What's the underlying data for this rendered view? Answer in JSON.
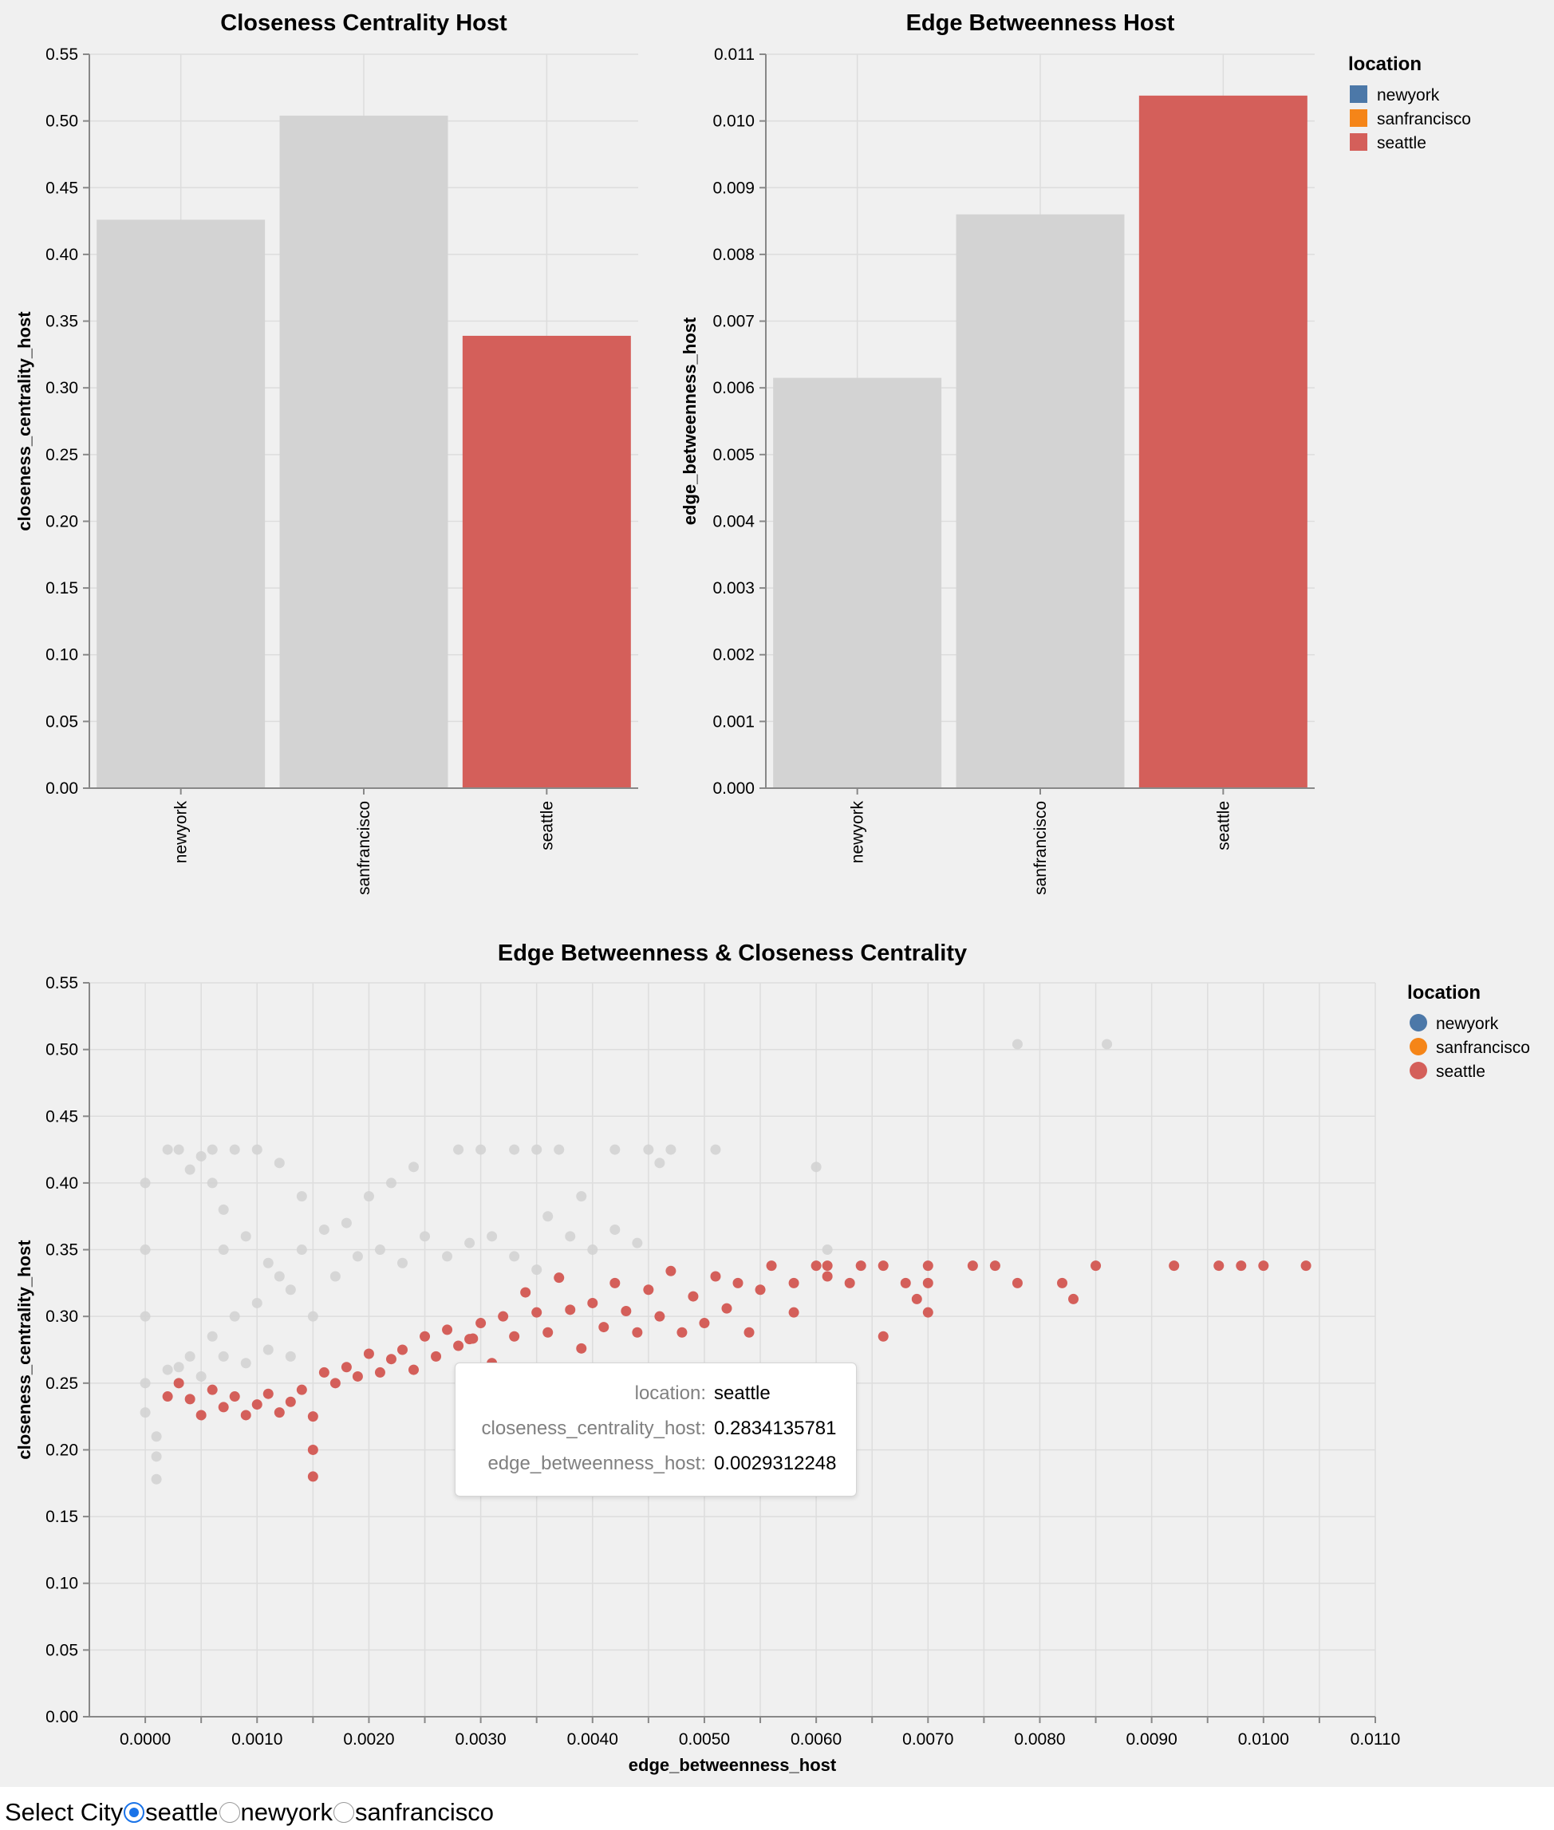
{
  "chart_data": [
    {
      "type": "bar",
      "title": "Closeness Centrality Host",
      "xlabel": "",
      "ylabel": "closeness_centrality_host",
      "categories": [
        "newyork",
        "sanfrancisco",
        "seattle"
      ],
      "values": [
        0.426,
        0.504,
        0.339
      ],
      "ylim": [
        0,
        0.55
      ],
      "yticks": [
        "0.00",
        "0.05",
        "0.10",
        "0.15",
        "0.20",
        "0.25",
        "0.30",
        "0.35",
        "0.40",
        "0.45",
        "0.50",
        "0.55"
      ],
      "highlighted": "seattle",
      "grid": true
    },
    {
      "type": "bar",
      "title": "Edge Betweenness Host",
      "xlabel": "",
      "ylabel": "edge_betweenness_host",
      "categories": [
        "newyork",
        "sanfrancisco",
        "seattle"
      ],
      "values": [
        0.00615,
        0.0086,
        0.01038
      ],
      "ylim": [
        0,
        0.011
      ],
      "yticks": [
        "0.000",
        "0.001",
        "0.002",
        "0.003",
        "0.004",
        "0.005",
        "0.006",
        "0.007",
        "0.008",
        "0.009",
        "0.010",
        "0.011"
      ],
      "highlighted": "seattle",
      "grid": true,
      "legend": {
        "title": "location",
        "entries": [
          "newyork",
          "sanfrancisco",
          "seattle"
        ],
        "placement": "right"
      }
    },
    {
      "type": "scatter",
      "title": "Edge Betweenness & Closeness Centrality",
      "xlabel": "edge_betweenness_host",
      "ylabel": "closeness_centrality_host",
      "xlim": [
        -0.0005,
        0.011
      ],
      "ylim": [
        0,
        0.55
      ],
      "xticks": [
        "0.0000",
        "0.0010",
        "0.0020",
        "0.0030",
        "0.0040",
        "0.0050",
        "0.0060",
        "0.0070",
        "0.0080",
        "0.0090",
        "0.0100",
        "0.0110"
      ],
      "yticks": [
        "0.00",
        "0.05",
        "0.10",
        "0.15",
        "0.20",
        "0.25",
        "0.30",
        "0.35",
        "0.40",
        "0.45",
        "0.50",
        "0.55"
      ],
      "grid": true,
      "legend": {
        "title": "location",
        "entries": [
          "newyork",
          "sanfrancisco",
          "seattle"
        ],
        "placement": "right"
      },
      "highlighted": "seattle",
      "series": [
        {
          "name": "seattle",
          "points": [
            [
              0.0074,
              0.338
            ],
            [
              0.0076,
              0.338
            ],
            [
              0.0078,
              0.325
            ],
            [
              0.0082,
              0.325
            ],
            [
              0.0083,
              0.313
            ],
            [
              0.0085,
              0.338
            ],
            [
              0.0092,
              0.338
            ],
            [
              0.0096,
              0.338
            ],
            [
              0.0098,
              0.338
            ],
            [
              0.01,
              0.338
            ],
            [
              0.01038,
              0.338
            ],
            [
              0.007,
              0.338
            ],
            [
              0.007,
              0.325
            ],
            [
              0.007,
              0.303
            ],
            [
              0.0069,
              0.313
            ],
            [
              0.0068,
              0.325
            ],
            [
              0.0066,
              0.285
            ],
            [
              0.0066,
              0.338
            ],
            [
              0.0064,
              0.338
            ],
            [
              0.0063,
              0.325
            ],
            [
              0.0061,
              0.33
            ],
            [
              0.0061,
              0.338
            ],
            [
              0.006,
              0.338
            ],
            [
              0.0058,
              0.303
            ],
            [
              0.0058,
              0.325
            ],
            [
              0.0056,
              0.338
            ],
            [
              0.0055,
              0.32
            ],
            [
              0.0054,
              0.288
            ],
            [
              0.0053,
              0.325
            ],
            [
              0.0052,
              0.306
            ],
            [
              0.0051,
              0.33
            ],
            [
              0.005,
              0.295
            ],
            [
              0.0049,
              0.315
            ],
            [
              0.0048,
              0.288
            ],
            [
              0.0047,
              0.334
            ],
            [
              0.0046,
              0.3
            ],
            [
              0.0045,
              0.32
            ],
            [
              0.0044,
              0.288
            ],
            [
              0.0043,
              0.304
            ],
            [
              0.0042,
              0.325
            ],
            [
              0.0041,
              0.292
            ],
            [
              0.004,
              0.31
            ],
            [
              0.0039,
              0.276
            ],
            [
              0.0038,
              0.305
            ],
            [
              0.0037,
              0.329
            ],
            [
              0.0036,
              0.288
            ],
            [
              0.0035,
              0.303
            ],
            [
              0.0034,
              0.318
            ],
            [
              0.0033,
              0.285
            ],
            [
              0.0032,
              0.3
            ],
            [
              0.0031,
              0.265
            ],
            [
              0.003,
              0.295
            ],
            [
              0.0029,
              0.283
            ],
            [
              0.0028,
              0.278
            ],
            [
              0.0027,
              0.29
            ],
            [
              0.0026,
              0.27
            ],
            [
              0.0025,
              0.285
            ],
            [
              0.0024,
              0.26
            ],
            [
              0.0023,
              0.275
            ],
            [
              0.0022,
              0.268
            ],
            [
              0.0021,
              0.258
            ],
            [
              0.002,
              0.272
            ],
            [
              0.0019,
              0.255
            ],
            [
              0.0018,
              0.262
            ],
            [
              0.0017,
              0.25
            ],
            [
              0.0016,
              0.258
            ],
            [
              0.0015,
              0.18
            ],
            [
              0.0015,
              0.2
            ],
            [
              0.0015,
              0.225
            ],
            [
              0.0014,
              0.245
            ],
            [
              0.0013,
              0.236
            ],
            [
              0.0012,
              0.228
            ],
            [
              0.0011,
              0.242
            ],
            [
              0.001,
              0.234
            ],
            [
              0.0009,
              0.226
            ],
            [
              0.0008,
              0.24
            ],
            [
              0.0007,
              0.232
            ],
            [
              0.0006,
              0.245
            ],
            [
              0.0005,
              0.226
            ],
            [
              0.0004,
              0.238
            ],
            [
              0.0003,
              0.25
            ],
            [
              0.0002,
              0.24
            ],
            [
              0.00293,
              0.2834
            ]
          ]
        },
        {
          "name": "other",
          "points": [
            [
              0.0078,
              0.504
            ],
            [
              0.0086,
              0.504
            ],
            [
              0.006,
              0.412
            ],
            [
              0.0061,
              0.35
            ],
            [
              0.0051,
              0.425
            ],
            [
              0.0047,
              0.425
            ],
            [
              0.0046,
              0.415
            ],
            [
              0.0045,
              0.425
            ],
            [
              0.0042,
              0.425
            ],
            [
              0.0039,
              0.39
            ],
            [
              0.0037,
              0.425
            ],
            [
              0.0035,
              0.425
            ],
            [
              0.0033,
              0.425
            ],
            [
              0.003,
              0.425
            ],
            [
              0.0028,
              0.425
            ],
            [
              0.0024,
              0.412
            ],
            [
              0.0022,
              0.4
            ],
            [
              0.002,
              0.39
            ],
            [
              0.0018,
              0.37
            ],
            [
              0.0016,
              0.365
            ],
            [
              0.0014,
              0.35
            ],
            [
              0.0012,
              0.33
            ],
            [
              0.001,
              0.31
            ],
            [
              0.0008,
              0.3
            ],
            [
              0.0006,
              0.285
            ],
            [
              0.0004,
              0.27
            ],
            [
              0.0002,
              0.26
            ],
            [
              0.0,
              0.25
            ],
            [
              0.0001,
              0.178
            ],
            [
              0.0001,
              0.195
            ],
            [
              0.0001,
              0.21
            ],
            [
              0.0,
              0.228
            ],
            [
              0.0,
              0.3
            ],
            [
              0.0,
              0.35
            ],
            [
              0.0,
              0.4
            ],
            [
              0.0003,
              0.425
            ],
            [
              0.0005,
              0.42
            ],
            [
              0.0006,
              0.4
            ],
            [
              0.0007,
              0.38
            ],
            [
              0.0009,
              0.36
            ],
            [
              0.0011,
              0.34
            ],
            [
              0.0013,
              0.32
            ],
            [
              0.0015,
              0.3
            ],
            [
              0.0017,
              0.33
            ],
            [
              0.0019,
              0.345
            ],
            [
              0.0021,
              0.35
            ],
            [
              0.0023,
              0.34
            ],
            [
              0.0025,
              0.36
            ],
            [
              0.0027,
              0.345
            ],
            [
              0.0029,
              0.355
            ],
            [
              0.0031,
              0.36
            ],
            [
              0.0033,
              0.345
            ],
            [
              0.0035,
              0.335
            ],
            [
              0.0036,
              0.375
            ],
            [
              0.0038,
              0.36
            ],
            [
              0.004,
              0.35
            ],
            [
              0.0042,
              0.365
            ],
            [
              0.0044,
              0.355
            ],
            [
              0.0014,
              0.39
            ],
            [
              0.0012,
              0.415
            ],
            [
              0.001,
              0.425
            ],
            [
              0.0008,
              0.425
            ],
            [
              0.0006,
              0.425
            ],
            [
              0.0004,
              0.41
            ],
            [
              0.0002,
              0.425
            ],
            [
              0.0007,
              0.35
            ],
            [
              0.0013,
              0.27
            ],
            [
              0.0011,
              0.275
            ],
            [
              0.0009,
              0.265
            ],
            [
              0.0007,
              0.27
            ],
            [
              0.0005,
              0.255
            ],
            [
              0.0003,
              0.262
            ]
          ]
        }
      ]
    }
  ],
  "tooltip": {
    "rows": [
      {
        "key": "location:",
        "value": "seattle"
      },
      {
        "key": "closeness_centrality_host:",
        "value": "0.2834135781"
      },
      {
        "key": "edge_betweenness_host:",
        "value": "0.0029312248"
      }
    ]
  },
  "controls": {
    "select_label": "Select City",
    "options": [
      "seattle",
      "newyork",
      "sanfrancisco"
    ],
    "selected": "seattle"
  },
  "colors": {
    "newyork": "#4c78a8",
    "sanfrancisco": "#f58518",
    "seattle": "#d45f5a",
    "unselected": "#d3d3d3",
    "grid": "#dddddd",
    "axis": "#888888"
  }
}
